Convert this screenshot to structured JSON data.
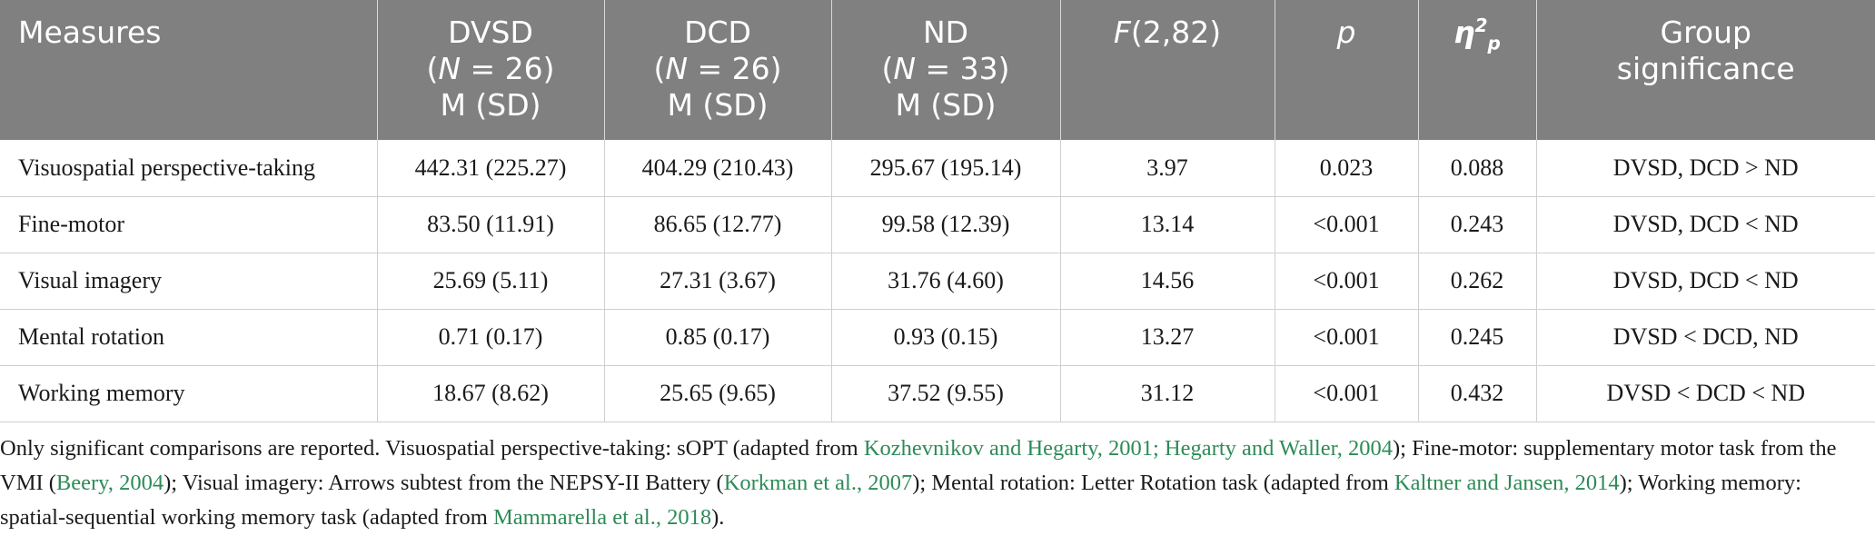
{
  "table": {
    "headers": [
      {
        "lines": [
          "Measures"
        ]
      },
      {
        "lines": [
          "DVSD",
          "(N = 26)",
          "M (SD)"
        ]
      },
      {
        "lines": [
          "DCD",
          "(N = 26)",
          "M (SD)"
        ]
      },
      {
        "lines": [
          "ND",
          "(N = 33)",
          "M (SD)"
        ]
      },
      {
        "lines": [
          "F(2,82)"
        ]
      },
      {
        "lines": [
          "p"
        ]
      },
      {
        "lines": [
          "η2p"
        ]
      },
      {
        "lines": [
          "Group",
          "significance"
        ]
      }
    ],
    "rows": [
      [
        "Visuospatial perspective-taking",
        "442.31 (225.27)",
        "404.29 (210.43)",
        "295.67 (195.14)",
        "3.97",
        "0.023",
        "0.088",
        "DVSD, DCD > ND"
      ],
      [
        "Fine-motor",
        "83.50 (11.91)",
        "86.65 (12.77)",
        "99.58 (12.39)",
        "13.14",
        "<0.001",
        "0.243",
        "DVSD, DCD < ND"
      ],
      [
        "Visual imagery",
        "25.69 (5.11)",
        "27.31 (3.67)",
        "31.76 (4.60)",
        "14.56",
        "<0.001",
        "0.262",
        "DVSD, DCD < ND"
      ],
      [
        "Mental rotation",
        "0.71 (0.17)",
        "0.85 (0.17)",
        "0.93 (0.15)",
        "13.27",
        "<0.001",
        "0.245",
        "DVSD < DCD, ND"
      ],
      [
        "Working memory",
        "18.67 (8.62)",
        "25.65 (9.65)",
        "37.52 (9.55)",
        "31.12",
        "<0.001",
        "0.432",
        "DVSD < DCD < ND"
      ]
    ]
  },
  "note": {
    "t1": "Only significant comparisons are reported. Visuospatial perspective-taking: sOPT (adapted from ",
    "l1": "Kozhevnikov and Hegarty, 2001; Hegarty and Waller, 2004",
    "t2": "); Fine-motor: supplementary motor task from the VMI (",
    "l2": "Beery, 2004",
    "t3": "); Visual imagery: Arrows subtest from the NEPSY-II Battery (",
    "l3": "Korkman et al., 2007",
    "t4": "); Mental rotation: Letter Rotation task (adapted from ",
    "l4": "Kaltner and Jansen, 2014",
    "t5": "); Working memory: spatial-sequential working memory task (adapted from ",
    "l5": "Mammarella et al., 2018",
    "t6": ")."
  },
  "colors": {
    "header_bg": "#808080",
    "link": "#2e8b57"
  }
}
